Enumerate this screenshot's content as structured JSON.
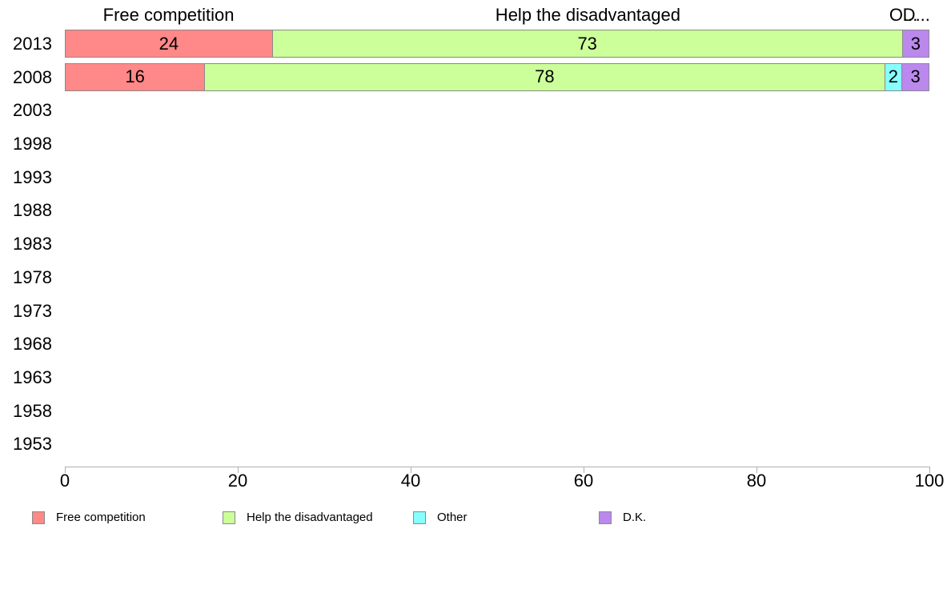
{
  "chart_data": {
    "type": "bar",
    "orientation": "horizontal",
    "stacked": true,
    "title": "",
    "categories": [
      "2013",
      "2008",
      "2003",
      "1998",
      "1993",
      "1988",
      "1983",
      "1978",
      "1973",
      "1968",
      "1963",
      "1958",
      "1953"
    ],
    "series": [
      {
        "name": "Free competition",
        "color": "#ff8888",
        "values": [
          24,
          16,
          null,
          null,
          null,
          null,
          null,
          null,
          null,
          null,
          null,
          null,
          null
        ]
      },
      {
        "name": "Help the disadvantaged",
        "color": "#ccff99",
        "values": [
          73,
          78,
          null,
          null,
          null,
          null,
          null,
          null,
          null,
          null,
          null,
          null,
          null
        ]
      },
      {
        "name": "Other",
        "color": "#88ffff",
        "values": [
          null,
          2,
          null,
          null,
          null,
          null,
          null,
          null,
          null,
          null,
          null,
          null,
          null
        ]
      },
      {
        "name": "D.K.",
        "color": "#bb88ee",
        "values": [
          3,
          3,
          null,
          null,
          null,
          null,
          null,
          null,
          null,
          null,
          null,
          null,
          null
        ]
      }
    ],
    "column_headers": [
      "Free competition",
      "Help the disadvantaged",
      "O...",
      "D..."
    ],
    "x_axis": {
      "min": 0,
      "max": 100,
      "ticks": [
        0,
        20,
        40,
        60,
        80,
        100
      ]
    },
    "legend": {
      "position": "bottom",
      "entries": [
        {
          "label": "Free competition",
          "color": "#ff8888"
        },
        {
          "label": "Help the disadvantaged",
          "color": "#ccff99"
        },
        {
          "label": "Other",
          "color": "#88ffff"
        },
        {
          "label": "D.K.",
          "color": "#bb88ee"
        }
      ]
    },
    "styles": {
      "bar_border": "#8a8a8a",
      "axis_color": "#b0b0b0",
      "text_color": "#000000"
    }
  }
}
